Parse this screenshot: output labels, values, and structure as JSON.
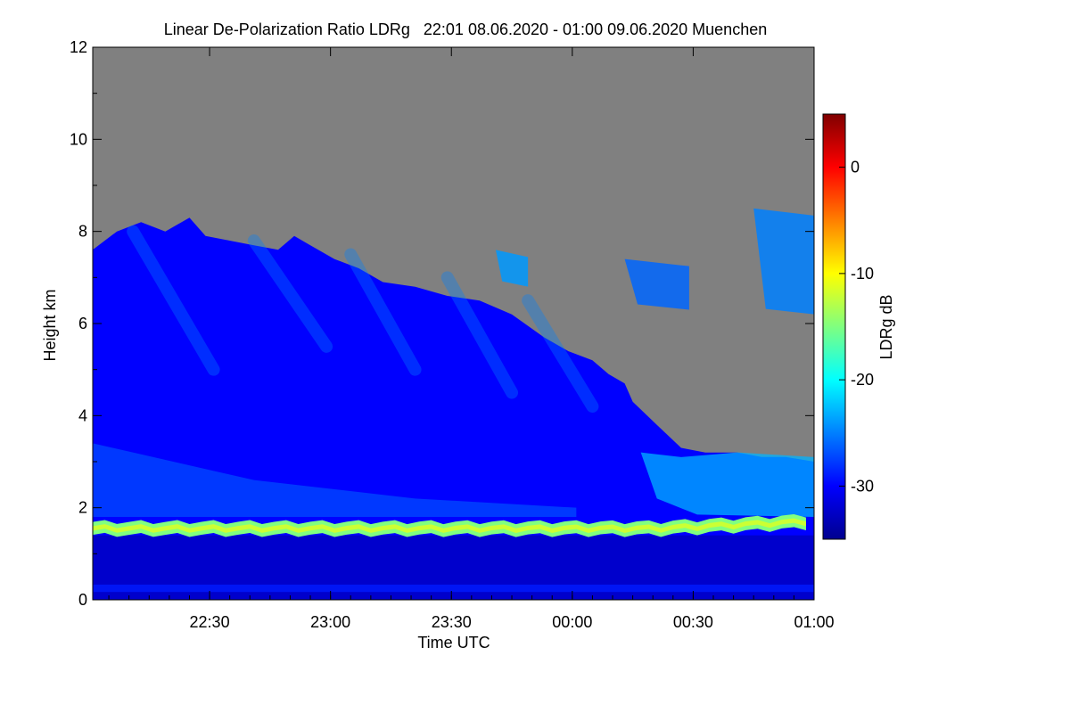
{
  "chart_data": {
    "type": "heatmap",
    "title": "Linear De-Polarization Ratio LDRg   22:01 08.06.2020 - 01:00 09.06.2020 Muenchen",
    "xlabel": "Time UTC",
    "ylabel": "Height km",
    "x_range_minutes": [
      0,
      179
    ],
    "x_start_label": "22:01",
    "x_ticks": [
      {
        "label": "22:30",
        "minute": 29
      },
      {
        "label": "23:00",
        "minute": 59
      },
      {
        "label": "23:30",
        "minute": 89
      },
      {
        "label": "00:00",
        "minute": 119
      },
      {
        "label": "00:30",
        "minute": 149
      },
      {
        "label": "01:00",
        "minute": 179
      }
    ],
    "ylim": [
      0,
      12
    ],
    "y_ticks": [
      0,
      2,
      4,
      6,
      8,
      10,
      12
    ],
    "colorbar": {
      "label": "LDRg dB",
      "range": [
        -35,
        5
      ],
      "ticks": [
        0,
        -10,
        -20,
        -30
      ],
      "tick_labels": [
        "0",
        "-10",
        "-20",
        "-30"
      ],
      "colormap": "jet"
    },
    "no_signal_color": "#808080",
    "cloud_top_km": [
      [
        0,
        7.6
      ],
      [
        6,
        8.0
      ],
      [
        12,
        8.2
      ],
      [
        18,
        8.0
      ],
      [
        24,
        8.3
      ],
      [
        28,
        7.9
      ],
      [
        34,
        7.8
      ],
      [
        40,
        7.7
      ],
      [
        46,
        7.6
      ],
      [
        50,
        7.9
      ],
      [
        54,
        7.7
      ],
      [
        60,
        7.4
      ],
      [
        66,
        7.2
      ],
      [
        72,
        6.9
      ],
      [
        80,
        6.8
      ],
      [
        88,
        6.6
      ],
      [
        96,
        6.5
      ],
      [
        104,
        6.2
      ],
      [
        112,
        5.7
      ],
      [
        118,
        5.4
      ],
      [
        124,
        5.2
      ],
      [
        128,
        4.9
      ],
      [
        132,
        4.7
      ],
      [
        134,
        4.3
      ],
      [
        140,
        3.8
      ],
      [
        146,
        3.3
      ],
      [
        152,
        3.2
      ],
      [
        160,
        3.2
      ],
      [
        166,
        3.1
      ],
      [
        172,
        3.1
      ],
      [
        179,
        3.0
      ]
    ],
    "upper_cloud_patches": [
      {
        "t_start": 164,
        "t_end": 179,
        "base_km": 6.2,
        "top_km": 8.5,
        "ldr_db": -25
      },
      {
        "t_start": 100,
        "t_end": 108,
        "base_km": 6.8,
        "top_km": 7.6,
        "ldr_db": -24
      },
      {
        "t_start": 132,
        "t_end": 148,
        "base_km": 6.3,
        "top_km": 7.4,
        "ldr_db": -26
      }
    ],
    "layers": [
      {
        "name": "cirrus bulk",
        "ldr_db": -30
      },
      {
        "name": "melting layer",
        "height_km": 1.55,
        "ldr_db": -15
      },
      {
        "name": "rain below melting layer",
        "ldr_db": -32
      },
      {
        "name": "near-surface band",
        "height_km": 0.25,
        "ldr_db": -29
      },
      {
        "name": "low cloud base region",
        "height_km": 2.5,
        "ldr_db": -23
      }
    ]
  }
}
